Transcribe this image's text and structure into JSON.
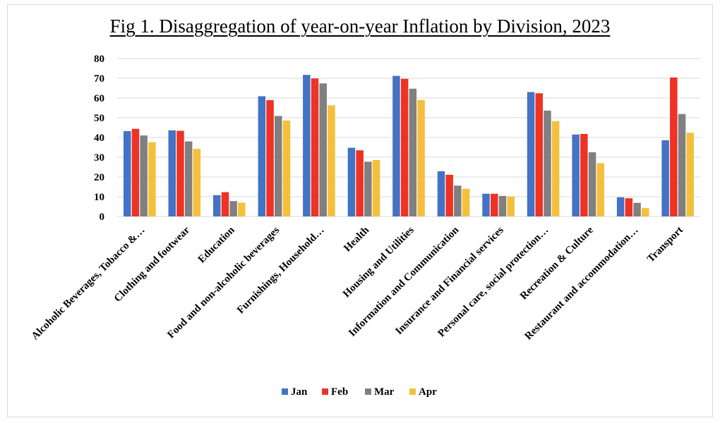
{
  "chart_data": {
    "type": "bar",
    "title": "Fig 1. Disaggregation of year-on-year Inflation by Division, 2023",
    "xlabel": "",
    "ylabel": "",
    "ylim": [
      0,
      80
    ],
    "yticks": [
      0,
      10,
      20,
      30,
      40,
      50,
      60,
      70,
      80
    ],
    "grid": true,
    "legend_position": "bottom",
    "categories": [
      "Alcoholic Beverages, Tobacco &…",
      "Clothing and footwear",
      "Education",
      "Food and non-alcoholic beverages",
      "Furnishings, Household…",
      "Health",
      "Housing and Utilities",
      "Information and Communication",
      "Insurance and Financial services",
      "Personal care, social protection…",
      "Recreation & Culture",
      "Restaurant and accommodation…",
      "Transport"
    ],
    "series": [
      {
        "name": "Jan",
        "color": "#4472c4",
        "values": [
          43.2,
          43.6,
          10.8,
          60.9,
          71.7,
          34.8,
          71.2,
          22.9,
          11.5,
          63.0,
          41.5,
          9.7,
          38.6
        ]
      },
      {
        "name": "Feb",
        "color": "#ee3224",
        "values": [
          44.4,
          43.4,
          12.3,
          58.9,
          69.9,
          33.5,
          69.7,
          21.1,
          11.5,
          62.4,
          41.8,
          9.2,
          70.4
        ]
      },
      {
        "name": "Mar",
        "color": "#808080",
        "values": [
          41.0,
          38.0,
          7.8,
          50.9,
          67.4,
          27.7,
          64.7,
          15.6,
          10.4,
          53.6,
          32.5,
          6.9,
          51.9
        ]
      },
      {
        "name": "Apr",
        "color": "#f4c03c",
        "values": [
          37.6,
          34.2,
          7.0,
          48.6,
          56.3,
          28.6,
          59.0,
          14.0,
          10.1,
          48.3,
          27.0,
          4.2,
          42.4
        ]
      }
    ]
  }
}
